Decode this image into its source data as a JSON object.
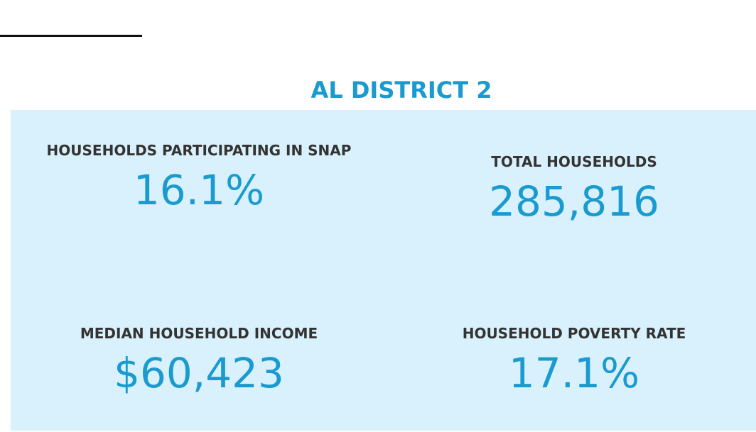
{
  "header": {
    "title": "AL DISTRICT 2"
  },
  "stats": [
    {
      "label": "HOUSEHOLDS PARTICIPATING IN SNAP",
      "value": "16.1%"
    },
    {
      "label": "TOTAL HOUSEHOLDS",
      "value": "285,816"
    },
    {
      "label": "MEDIAN HOUSEHOLD INCOME",
      "value": "$60,423"
    },
    {
      "label": "HOUSEHOLD POVERTY RATE",
      "value": "17.1%"
    }
  ]
}
